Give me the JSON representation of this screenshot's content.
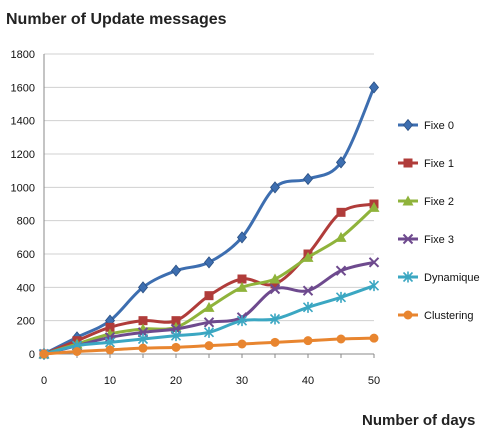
{
  "chart_data": {
    "type": "line",
    "title": "Number of Update messages",
    "xlabel": "Number of days",
    "ylabel": "",
    "x": [
      0,
      5,
      10,
      15,
      20,
      25,
      30,
      35,
      40,
      45,
      50
    ],
    "xlim": [
      0,
      50
    ],
    "ylim": [
      0,
      1800
    ],
    "xticks": [
      0,
      10,
      20,
      30,
      40,
      50
    ],
    "yticks": [
      0,
      200,
      400,
      600,
      800,
      1000,
      1200,
      1400,
      1600,
      1800
    ],
    "grid": true,
    "legend": "right",
    "series": [
      {
        "name": "Fixe 0",
        "color": "#3d6eb0",
        "marker": "diamond",
        "values": [
          0,
          100,
          200,
          400,
          500,
          550,
          700,
          1000,
          1050,
          1150,
          1600
        ]
      },
      {
        "name": "Fixe 1",
        "color": "#b03c3a",
        "marker": "square",
        "values": [
          0,
          80,
          160,
          200,
          200,
          350,
          450,
          420,
          600,
          850,
          900
        ]
      },
      {
        "name": "Fixe 2",
        "color": "#8fb33b",
        "marker": "triangle",
        "values": [
          0,
          60,
          120,
          150,
          160,
          280,
          400,
          450,
          580,
          700,
          880
        ]
      },
      {
        "name": "Fixe 3",
        "color": "#6e4a8e",
        "marker": "x",
        "values": [
          0,
          50,
          100,
          130,
          150,
          190,
          220,
          390,
          380,
          500,
          550
        ]
      },
      {
        "name": "Dynamique",
        "color": "#3ba7c2",
        "marker": "star",
        "values": [
          0,
          50,
          70,
          90,
          110,
          130,
          200,
          210,
          280,
          340,
          410
        ]
      },
      {
        "name": "Clustering",
        "color": "#e8852f",
        "marker": "circle",
        "values": [
          0,
          15,
          25,
          35,
          40,
          50,
          60,
          70,
          80,
          90,
          95
        ]
      }
    ]
  }
}
